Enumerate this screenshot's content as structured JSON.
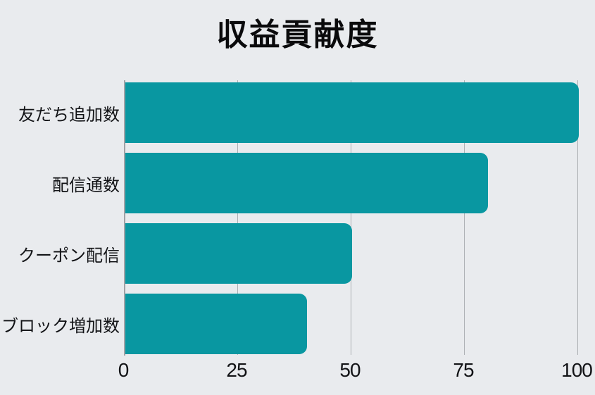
{
  "colors": {
    "background": "#E9EBEE",
    "bar": "#0997A1",
    "grid": "#ACAFB3",
    "axis": "#9EA2A6",
    "text": "#121316"
  },
  "chart_data": {
    "type": "bar",
    "orientation": "horizontal",
    "title": "収益貢献度",
    "categories": [
      "友だち追加数",
      "配信通数",
      "クーポン配信",
      "ブロック増加数"
    ],
    "values": [
      100,
      80,
      50,
      40
    ],
    "xlim": [
      0,
      100
    ],
    "x_ticks": [
      0,
      25,
      50,
      75,
      100
    ],
    "x_tick_labels": [
      "0",
      "25",
      "50",
      "75",
      "100"
    ],
    "xlabel": "",
    "ylabel": "",
    "grid": true,
    "legend": false,
    "bar_corner": "rounded-right"
  }
}
